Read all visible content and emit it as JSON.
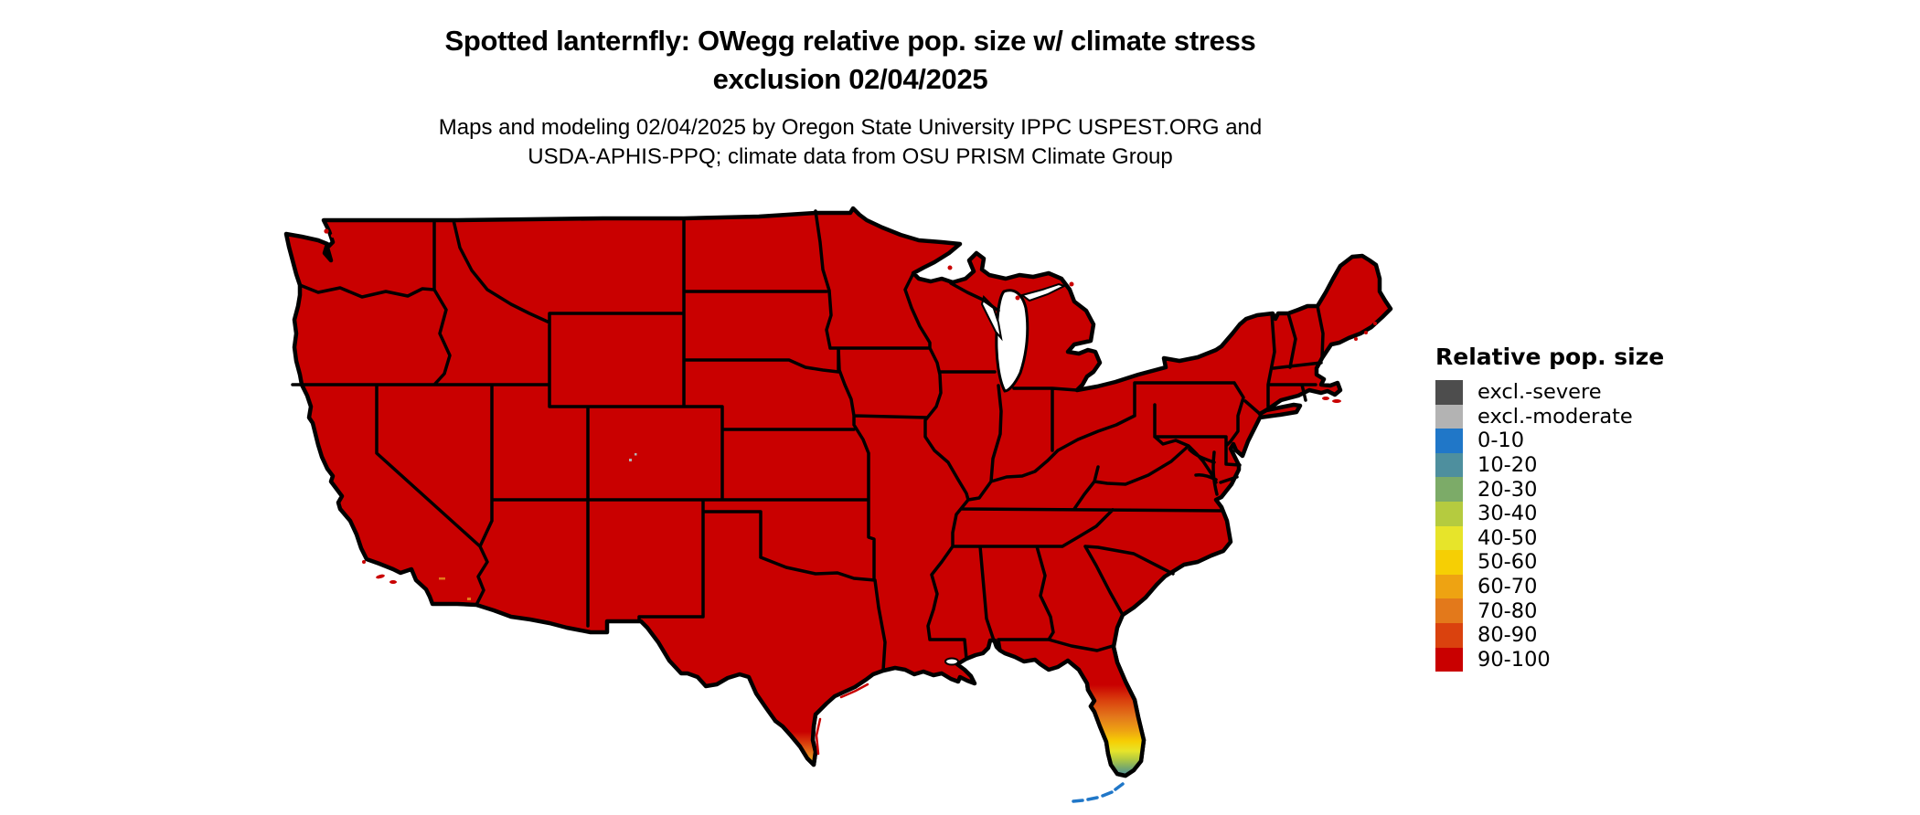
{
  "figure": {
    "title_line1": "Spotted lanternfly: OWegg relative pop. size w/ climate stress",
    "title_line2": "exclusion 02/04/2025",
    "subtitle_line1": "Maps and modeling 02/04/2025 by Oregon State University IPPC USPEST.ORG and",
    "subtitle_line2": "USDA-APHIS-PPQ; climate data from OSU PRISM Climate Group"
  },
  "legend": {
    "title": "Relative pop. size",
    "items": [
      {
        "label": "excl.-severe",
        "color": "#4d4d4d"
      },
      {
        "label": "excl.-moderate",
        "color": "#b3b3b3"
      },
      {
        "label": "0-10",
        "color": "#2077c8"
      },
      {
        "label": "10-20",
        "color": "#4e8f9e"
      },
      {
        "label": "20-30",
        "color": "#7cab68"
      },
      {
        "label": "30-40",
        "color": "#b5cb3f"
      },
      {
        "label": "40-50",
        "color": "#e7e42a"
      },
      {
        "label": "50-60",
        "color": "#f6cf04"
      },
      {
        "label": "60-70",
        "color": "#eea312"
      },
      {
        "label": "70-80",
        "color": "#e3791b"
      },
      {
        "label": "80-90",
        "color": "#da420e"
      },
      {
        "label": "90-100",
        "color": "#c90000"
      }
    ]
  },
  "map": {
    "region": "Continental United States with state borders",
    "land_fill": "#c90000",
    "border_color": "#000000",
    "water_color": "#ffffff",
    "dominant_class": "90-100",
    "gradient_regions": [
      {
        "name": "south-florida-peninsula",
        "classes_north_to_south": [
          "90-100",
          "80-90",
          "70-80",
          "60-70",
          "50-60",
          "40-50",
          "30-40",
          "20-30",
          "10-20"
        ]
      },
      {
        "name": "florida-keys",
        "class": "0-10"
      },
      {
        "name": "south-texas-tip",
        "classes_north_to_south": [
          "90-100",
          "80-90",
          "70-80",
          "60-70",
          "50-60"
        ]
      },
      {
        "name": "colorado-high-elevation-specks",
        "class": "excl.-moderate"
      },
      {
        "name": "southern-california-desert-specks",
        "class": "70-80"
      }
    ]
  }
}
